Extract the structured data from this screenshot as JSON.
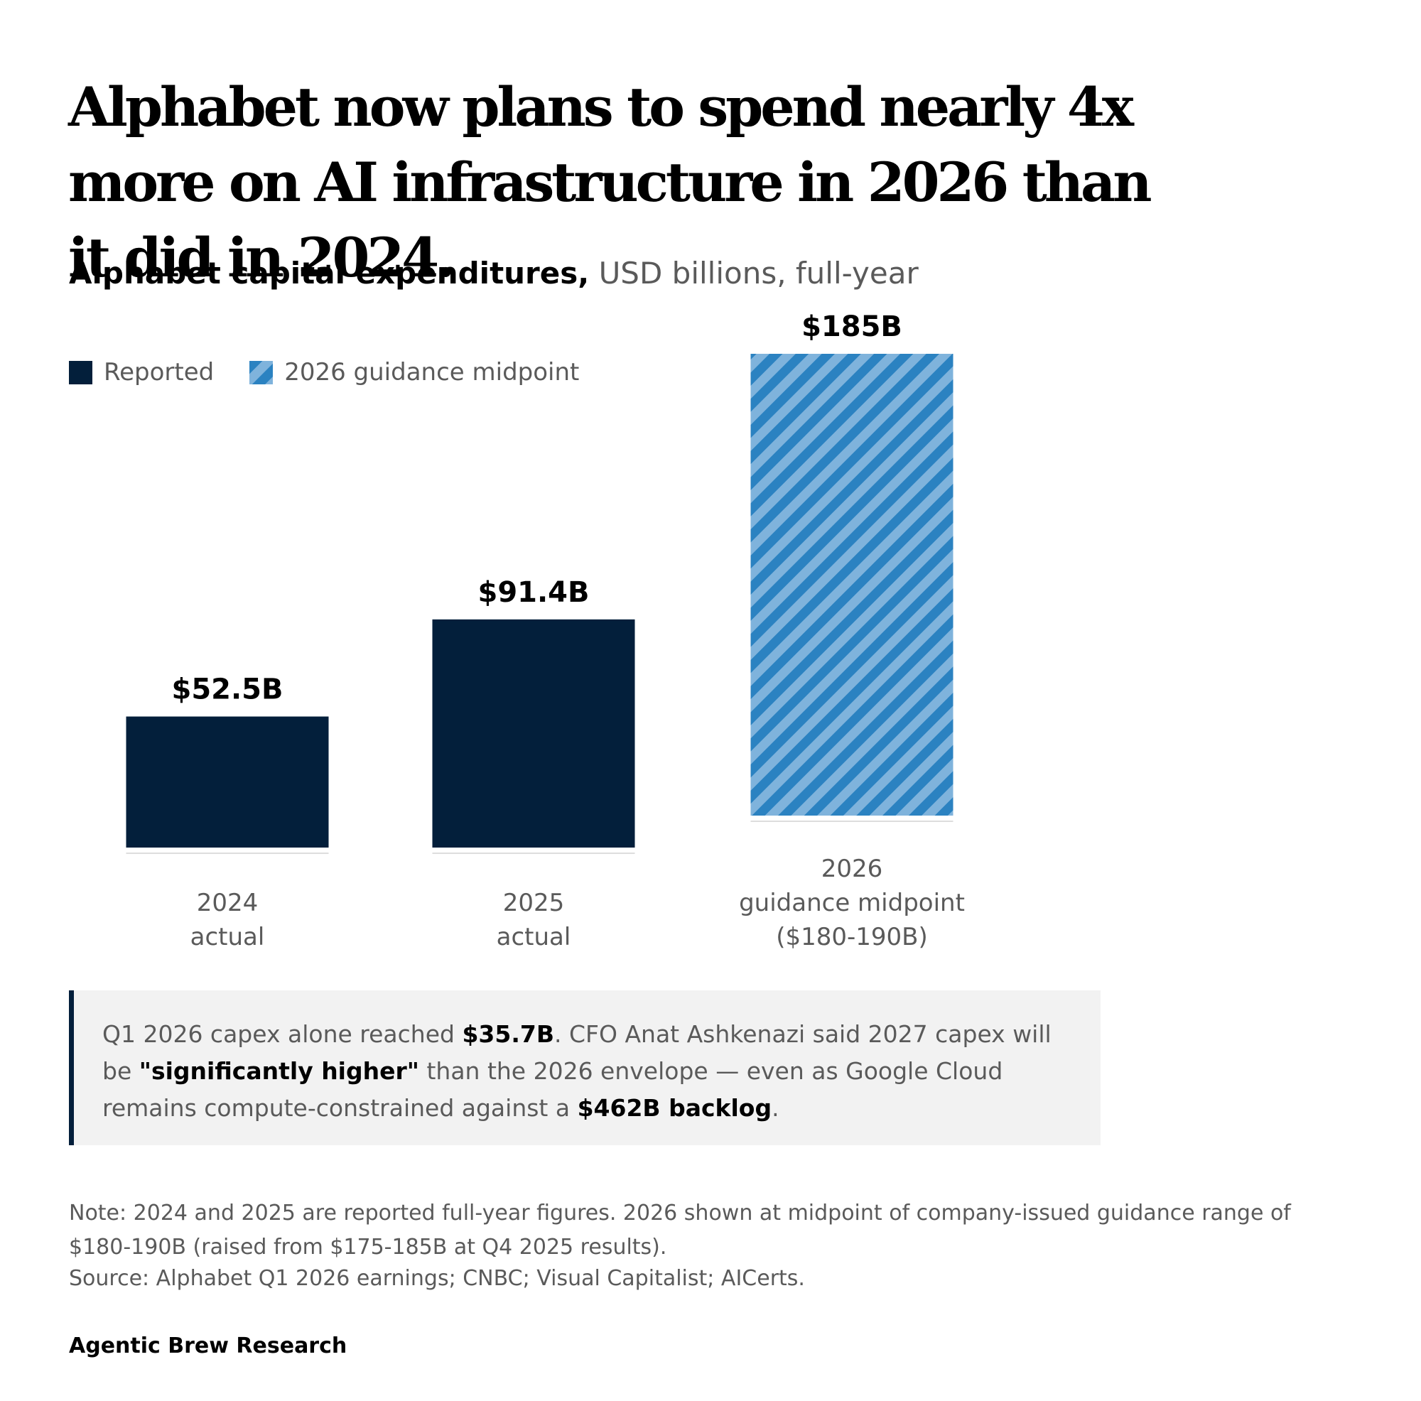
{
  "headline": "Alphabet now plans to spend nearly 4x more on AI infrastructure in 2026 than it did in 2024.",
  "subtitle": {
    "bold": "Alphabet capital expenditures,",
    "light": " USD billions, full-year"
  },
  "legend": [
    {
      "label": "Reported",
      "style": "solid",
      "color": "#031f3b"
    },
    {
      "label": "2026 guidance midpoint",
      "style": "hatched",
      "color": "#2b82c1"
    }
  ],
  "chart_data": {
    "type": "bar",
    "categories": [
      "2024 actual",
      "2025 actual",
      "2026 guidance midpoint ($180-190B)"
    ],
    "category_lines": [
      [
        "2024",
        "actual"
      ],
      [
        "2025",
        "actual"
      ],
      [
        "2026",
        "guidance midpoint",
        "($180-190B)"
      ]
    ],
    "values": [
      52.5,
      91.4,
      185
    ],
    "data_labels": [
      "$52.5B",
      "$91.4B",
      "$185B"
    ],
    "bar_styles": [
      "solid",
      "solid",
      "hatched"
    ],
    "colors": {
      "reported": "#031f3b",
      "guidance": "#2b82c1",
      "guidance_light": "#7fb3dc"
    },
    "ylim": [
      0,
      185
    ],
    "grid": false,
    "legend_position": "top-left"
  },
  "callout": {
    "p1": "Q1 2026 capex alone reached ",
    "b1": "$35.7B",
    "p2": ". CFO Anat Ashkenazi said 2027 capex will be ",
    "b2": "\"significantly higher\"",
    "p3": " than the 2026 envelope — even as Google Cloud remains compute-constrained against a ",
    "b3": "$462B backlog",
    "p4": "."
  },
  "note": "Note: 2024 and 2025 are reported full-year figures. 2026 shown at midpoint of company-issued guidance range of $180-190B (raised from $175-185B at Q4 2025 results).",
  "source": "Source: Alphabet Q1 2026 earnings; CNBC; Visual Capitalist; AICerts.",
  "brand": "Agentic Brew Research"
}
